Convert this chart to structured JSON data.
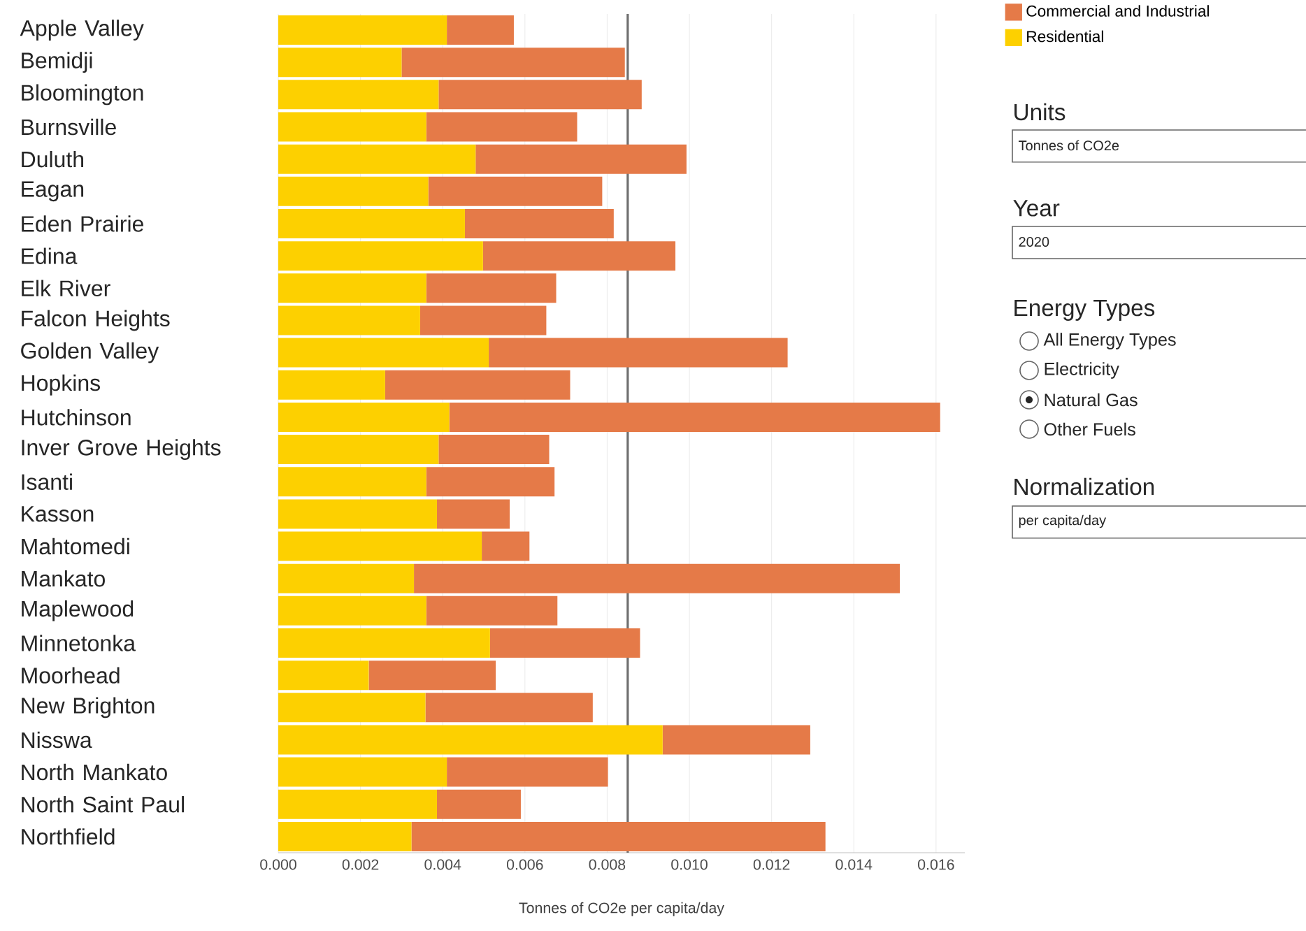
{
  "chart_data": {
    "type": "bar",
    "orientation": "horizontal",
    "stacked": true,
    "xlabel": "Tonnes of CO2e per capita/day",
    "categories": [
      "Apple Valley",
      "Bemidji",
      "Bloomington",
      "Burnsville",
      "Duluth",
      "Eagan",
      "Eden Prairie",
      "Edina",
      "Elk River",
      "Falcon Heights",
      "Golden Valley",
      "Hopkins",
      "Hutchinson",
      "Inver Grove Heights",
      "Isanti",
      "Kasson",
      "Mahtomedi",
      "Mankato",
      "Maplewood",
      "Minnetonka",
      "Moorhead",
      "New Brighton",
      "Nisswa",
      "North Mankato",
      "North Saint Paul",
      "Northfield"
    ],
    "series": [
      {
        "name": "Residential",
        "color": "#fdd000",
        "values": [
          0.0041,
          0.003,
          0.0039,
          0.0036,
          0.0048,
          0.00365,
          0.00454,
          0.00498,
          0.0036,
          0.00345,
          0.00512,
          0.0026,
          0.00416,
          0.0039,
          0.0036,
          0.00386,
          0.00495,
          0.0033,
          0.0036,
          0.00515,
          0.0022,
          0.00358,
          0.00935,
          0.0041,
          0.00386,
          0.00324
        ]
      },
      {
        "name": "Commercial and Industrial",
        "color": "#e57a48",
        "values": [
          0.00163,
          0.00543,
          0.00494,
          0.00367,
          0.00513,
          0.00423,
          0.00362,
          0.00468,
          0.00316,
          0.00307,
          0.00727,
          0.0045,
          0.01194,
          0.00269,
          0.00312,
          0.00177,
          0.00116,
          0.01182,
          0.00319,
          0.00365,
          0.00309,
          0.00407,
          0.00359,
          0.00392,
          0.00204,
          0.01007
        ]
      }
    ],
    "xlim": [
      0,
      0.0167
    ],
    "xticks": [
      {
        "value": 0,
        "label": "0.000"
      },
      {
        "value": 0.002,
        "label": "0.002"
      },
      {
        "value": 0.004,
        "label": "0.004"
      },
      {
        "value": 0.006,
        "label": "0.006"
      },
      {
        "value": 0.008,
        "label": "0.008"
      },
      {
        "value": 0.01,
        "label": "0.010"
      },
      {
        "value": 0.012,
        "label": "0.012"
      },
      {
        "value": 0.014,
        "label": "0.014"
      },
      {
        "value": 0.016,
        "label": "0.016"
      }
    ],
    "ref_lines": [
      {
        "axis": "x",
        "value": 0.0085,
        "color": "#6e6e6e"
      }
    ],
    "grid": "x",
    "legend": "top right",
    "annotations": [
      "Units",
      "Tonnes of CO2e",
      "Year",
      "2020",
      "Energy Types",
      "All Energy Types",
      "Electricity",
      "Natural Gas",
      "Other Fuels",
      "Normalization",
      "per capita/day"
    ]
  }
}
